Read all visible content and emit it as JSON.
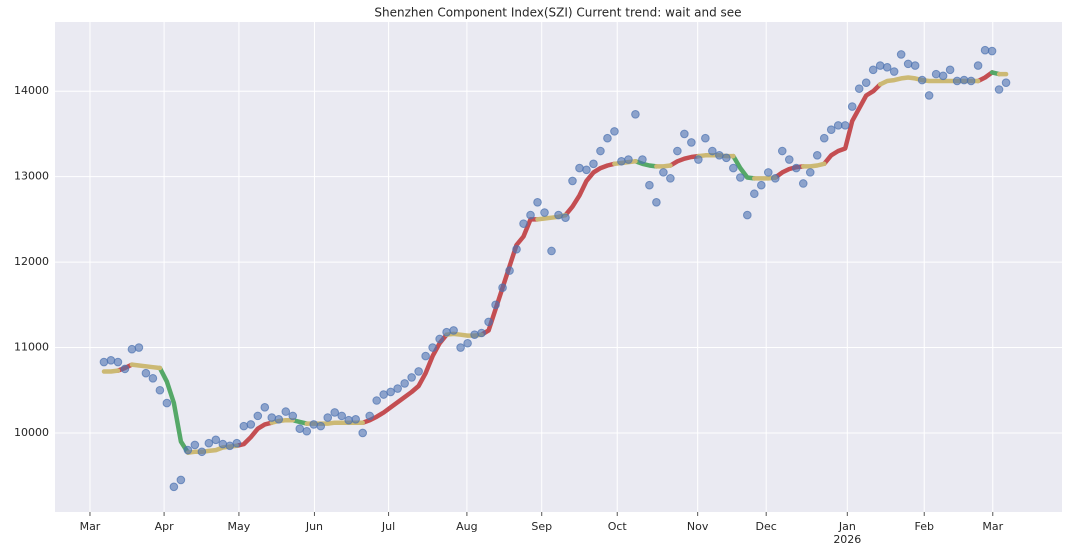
{
  "chart_data": {
    "type": "scatter",
    "title": "Shenzhen Component Index(SZI) Current trend: wait and see",
    "xlim": [
      -7,
      137
    ],
    "ylim": [
      9075,
      14810
    ],
    "yticks": [
      10000,
      11000,
      12000,
      13000,
      14000
    ],
    "xticks": [
      {
        "value": -2,
        "label": "Mar"
      },
      {
        "value": 8.6,
        "label": "Apr"
      },
      {
        "value": 19.3,
        "label": "May"
      },
      {
        "value": 30.1,
        "label": "Jun"
      },
      {
        "value": 40.7,
        "label": "Jul"
      },
      {
        "value": 51.9,
        "label": "Aug"
      },
      {
        "value": 62.6,
        "label": "Sep"
      },
      {
        "value": 73.4,
        "label": "Oct"
      },
      {
        "value": 84.9,
        "label": "Nov"
      },
      {
        "value": 94.7,
        "label": "Dec"
      },
      {
        "value": 106.3,
        "label": "Jan"
      },
      {
        "value": 117.3,
        "label": "Feb"
      },
      {
        "value": 127.1,
        "label": "Mar"
      }
    ],
    "xticks_second_row": [
      {
        "value": 106.3,
        "label": "2026"
      }
    ],
    "grid": true,
    "series": [
      {
        "kind": "markers",
        "color": "#4c72b0",
        "values": [
          10830,
          10850,
          10830,
          10750,
          10980,
          11000,
          10700,
          10640,
          10500,
          10350,
          9370,
          9450,
          9800,
          9860,
          9780,
          9880,
          9920,
          9870,
          9850,
          9880,
          10080,
          10100,
          10200,
          10300,
          10180,
          10160,
          10250,
          10200,
          10050,
          10020,
          10100,
          10080,
          10180,
          10240,
          10200,
          10150,
          10160,
          10000,
          10200,
          10380,
          10450,
          10480,
          10520,
          10580,
          10650,
          10720,
          10900,
          11000,
          11100,
          11180,
          11200,
          11000,
          11050,
          11150,
          11170,
          11300,
          11500,
          11700,
          11900,
          12150,
          12450,
          12550,
          12700,
          12580,
          12130,
          12550,
          12520,
          12950,
          13100,
          13080,
          13150,
          13300,
          13450,
          13530,
          13180,
          13200,
          13730,
          13200,
          12900,
          12700,
          13050,
          12980,
          13300,
          13500,
          13400,
          13200,
          13450,
          13300,
          13250,
          13220,
          13100,
          12990,
          12550,
          12800,
          12900,
          13050,
          12980,
          13300,
          13200,
          13100,
          12920,
          13050,
          13250,
          13450,
          13550,
          13600,
          13600,
          13820,
          14030,
          14100,
          14250,
          14300,
          14280,
          14230,
          14430,
          14320,
          14300,
          14130,
          13950,
          14200,
          14180,
          14250,
          14120,
          14130,
          14120,
          14300,
          14480,
          14470,
          14020,
          14100
        ]
      },
      {
        "kind": "line",
        "color": "#c44e52",
        "values": [
          null,
          null,
          10730,
          10760,
          10800,
          null,
          null,
          null,
          null,
          null,
          null,
          null,
          null,
          null,
          null,
          null,
          null,
          null,
          null,
          9850,
          9870,
          9950,
          10050,
          10100,
          10120,
          null,
          null,
          null,
          null,
          null,
          null,
          null,
          null,
          null,
          null,
          null,
          null,
          10120,
          10150,
          10190,
          10240,
          10300,
          10360,
          10420,
          10480,
          10550,
          10700,
          10900,
          11050,
          11150,
          null,
          null,
          null,
          null,
          11150,
          11200,
          11450,
          11700,
          11950,
          12200,
          12300,
          12500,
          12500,
          null,
          null,
          null,
          12550,
          12650,
          12780,
          12950,
          13050,
          13100,
          13130,
          13150,
          null,
          null,
          null,
          null,
          null,
          null,
          null,
          13130,
          13180,
          13210,
          13230,
          13240,
          null,
          null,
          null,
          null,
          null,
          null,
          null,
          null,
          null,
          null,
          12990,
          13050,
          13090,
          13110,
          13120,
          null,
          null,
          13150,
          13250,
          13300,
          13330,
          13650,
          13800,
          13950,
          14000,
          14080,
          null,
          null,
          null,
          null,
          null,
          null,
          null,
          null,
          null,
          null,
          null,
          null,
          null,
          14120,
          14160,
          14220,
          null,
          null
        ]
      },
      {
        "kind": "line",
        "color": "#55a868",
        "values": [
          null,
          null,
          null,
          null,
          null,
          null,
          null,
          null,
          10760,
          10600,
          10350,
          9900,
          9770,
          null,
          null,
          null,
          null,
          null,
          null,
          null,
          null,
          null,
          null,
          null,
          null,
          null,
          null,
          10150,
          10130,
          10110,
          null,
          null,
          null,
          null,
          null,
          null,
          null,
          null,
          null,
          null,
          null,
          null,
          null,
          null,
          null,
          null,
          null,
          null,
          null,
          null,
          null,
          null,
          null,
          null,
          null,
          null,
          null,
          null,
          null,
          null,
          null,
          null,
          null,
          null,
          null,
          null,
          null,
          null,
          null,
          null,
          null,
          null,
          null,
          null,
          null,
          null,
          13180,
          13150,
          13130,
          13120,
          null,
          null,
          null,
          null,
          null,
          null,
          null,
          null,
          null,
          null,
          13240,
          13100,
          12990,
          12980,
          null,
          null,
          null,
          null,
          null,
          null,
          null,
          null,
          null,
          null,
          null,
          null,
          null,
          null,
          null,
          null,
          null,
          null,
          null,
          null,
          null,
          null,
          null,
          null,
          null,
          null,
          null,
          null,
          null,
          null,
          null,
          null,
          null,
          14220,
          14200,
          null
        ]
      },
      {
        "kind": "line",
        "color": "#ccb974",
        "values": [
          10720,
          10720,
          10730,
          null,
          10800,
          10790,
          10780,
          10770,
          10760,
          null,
          null,
          null,
          9770,
          9780,
          9780,
          9790,
          9800,
          9830,
          9840,
          9850,
          null,
          null,
          null,
          null,
          10120,
          10140,
          10150,
          10150,
          null,
          10110,
          10110,
          10110,
          10110,
          10120,
          10120,
          10120,
          10120,
          10120,
          null,
          null,
          null,
          null,
          null,
          null,
          null,
          null,
          null,
          null,
          null,
          11150,
          11160,
          11150,
          11140,
          11140,
          11150,
          null,
          null,
          null,
          null,
          null,
          null,
          null,
          12500,
          12510,
          12520,
          12530,
          12550,
          null,
          null,
          null,
          null,
          null,
          null,
          13150,
          13160,
          13170,
          13180,
          null,
          null,
          13120,
          13120,
          13130,
          null,
          null,
          null,
          13240,
          13250,
          13250,
          13250,
          13240,
          13240,
          null,
          null,
          12980,
          12980,
          12980,
          12990,
          null,
          null,
          null,
          13120,
          13120,
          13130,
          13150,
          null,
          null,
          null,
          null,
          null,
          null,
          null,
          14080,
          14120,
          14130,
          14150,
          14160,
          14150,
          14130,
          14120,
          14120,
          14120,
          14120,
          14120,
          14120,
          14120,
          14120,
          null,
          null,
          14200,
          14200
        ]
      }
    ]
  }
}
